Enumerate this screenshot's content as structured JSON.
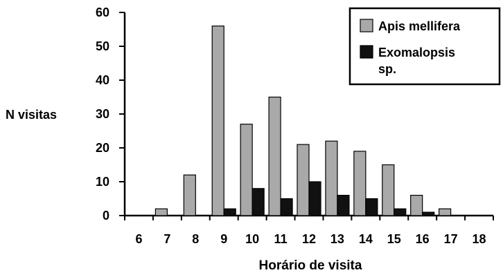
{
  "chart_data": {
    "type": "bar",
    "title": "",
    "xlabel": "Horário de visita",
    "ylabel": "N visitas",
    "categories": [
      "6",
      "7",
      "8",
      "9",
      "10",
      "11",
      "12",
      "13",
      "14",
      "15",
      "16",
      "17",
      "18"
    ],
    "ylim": [
      0,
      60
    ],
    "yticks": [
      "0",
      "10",
      "20",
      "30",
      "40",
      "50",
      "60"
    ],
    "grid": false,
    "legend_position": "top-right",
    "series": [
      {
        "name": "Apis mellifera",
        "color": "#a9a9a9",
        "values": [
          0,
          2,
          12,
          56,
          27,
          35,
          21,
          22,
          19,
          15,
          6,
          2,
          0
        ]
      },
      {
        "name": "Exomalopsis sp.",
        "color": "#111111",
        "values": [
          0,
          0,
          0,
          2,
          8,
          5,
          10,
          6,
          5,
          2,
          1,
          0,
          0
        ]
      }
    ],
    "legend": {
      "items": [
        {
          "lines": [
            "Apis mellifera"
          ]
        },
        {
          "lines": [
            "Exomalopsis",
            "sp."
          ]
        }
      ]
    }
  }
}
